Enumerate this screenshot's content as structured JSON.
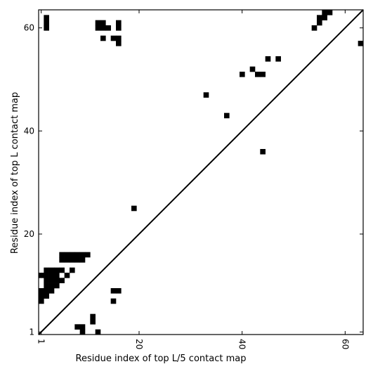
{
  "chart_data": {
    "type": "heatmap",
    "xlabel": "Residue index of top L/5 contact map",
    "ylabel": "Residue index of top L contact map",
    "xlim": [
      0.5,
      63.5
    ],
    "ylim": [
      0.5,
      63.5
    ],
    "xticks": [
      {
        "value": 1,
        "label": "1",
        "rotate": true
      },
      {
        "value": 20,
        "label": "20",
        "rotate": true
      },
      {
        "value": 40,
        "label": "40",
        "rotate": true
      },
      {
        "value": 60,
        "label": "60",
        "rotate": true
      }
    ],
    "yticks": [
      {
        "value": 1,
        "label": "1"
      },
      {
        "value": 20,
        "label": "20"
      },
      {
        "value": 40,
        "label": "40"
      },
      {
        "value": 60,
        "label": "60"
      }
    ],
    "diagonal": true,
    "grid": false,
    "cell_color": "#000000",
    "contacts_upper": [
      [
        2,
        60
      ],
      [
        2,
        61
      ],
      [
        2,
        62
      ],
      [
        12,
        60
      ],
      [
        12,
        61
      ],
      [
        13,
        60
      ],
      [
        13,
        61
      ],
      [
        14,
        60
      ],
      [
        13,
        58
      ],
      [
        15,
        58
      ],
      [
        16,
        58
      ],
      [
        16,
        57
      ],
      [
        16,
        60
      ],
      [
        16,
        61
      ],
      [
        19,
        25
      ],
      [
        33,
        47
      ],
      [
        37,
        43
      ],
      [
        40,
        51
      ],
      [
        42,
        52
      ],
      [
        43,
        51
      ],
      [
        44,
        51
      ],
      [
        44,
        36
      ],
      [
        45,
        54
      ],
      [
        47,
        54
      ],
      [
        54,
        60
      ],
      [
        55,
        61
      ],
      [
        55,
        62
      ],
      [
        56,
        62
      ],
      [
        56,
        63
      ],
      [
        57,
        63
      ],
      [
        63,
        57
      ]
    ],
    "contacts_lower": [
      [
        5,
        16
      ],
      [
        6,
        16
      ],
      [
        7,
        16
      ],
      [
        8,
        16
      ],
      [
        9,
        16
      ],
      [
        10,
        16
      ],
      [
        5,
        15
      ],
      [
        6,
        15
      ],
      [
        7,
        15
      ],
      [
        8,
        15
      ],
      [
        9,
        15
      ],
      [
        2,
        13
      ],
      [
        3,
        13
      ],
      [
        4,
        13
      ],
      [
        5,
        13
      ],
      [
        7,
        13
      ],
      [
        1,
        12
      ],
      [
        2,
        12
      ],
      [
        3,
        12
      ],
      [
        4,
        12
      ],
      [
        6,
        12
      ],
      [
        2,
        11
      ],
      [
        3,
        11
      ],
      [
        4,
        11
      ],
      [
        5,
        11
      ],
      [
        2,
        10
      ],
      [
        3,
        10
      ],
      [
        4,
        10
      ],
      [
        1,
        9
      ],
      [
        2,
        9
      ],
      [
        3,
        9
      ],
      [
        1,
        8
      ],
      [
        2,
        8
      ],
      [
        1,
        7
      ],
      [
        15,
        9
      ],
      [
        16,
        9
      ],
      [
        15,
        7
      ],
      [
        11,
        4
      ],
      [
        11,
        3
      ],
      [
        8,
        2
      ],
      [
        9,
        2
      ],
      [
        9,
        1
      ],
      [
        12,
        1
      ]
    ]
  }
}
